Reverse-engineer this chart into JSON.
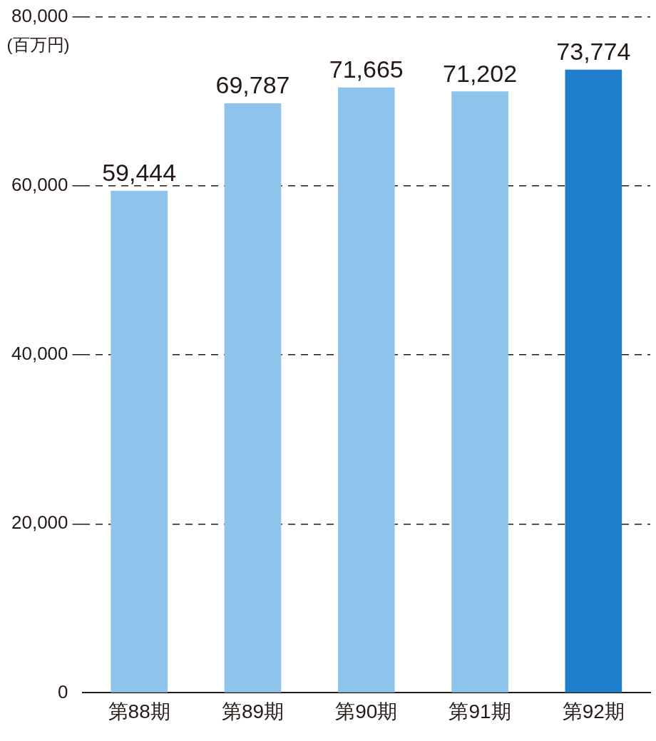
{
  "chart_data": {
    "type": "bar",
    "ylabel": "(百万円)",
    "categories": [
      "第88期",
      "第89期",
      "第90期",
      "第91期",
      "第92期"
    ],
    "values": [
      59444,
      69787,
      71665,
      71202,
      73774
    ],
    "colors": [
      "#8ec4ec",
      "#8ec4ec",
      "#8ec4ec",
      "#8ec4ec",
      "#1f7fcc"
    ],
    "ylim": [
      0,
      80000
    ],
    "yticks": [
      {
        "value": 0,
        "label": "0"
      },
      {
        "value": 20000,
        "label": "20,000"
      },
      {
        "value": 40000,
        "label": "40,000"
      },
      {
        "value": 60000,
        "label": "60,000"
      },
      {
        "value": 80000,
        "label": "80,000"
      }
    ],
    "value_labels": [
      "59,444",
      "69,787",
      "71,665",
      "71,202",
      "73,774"
    ],
    "grid": "y"
  }
}
